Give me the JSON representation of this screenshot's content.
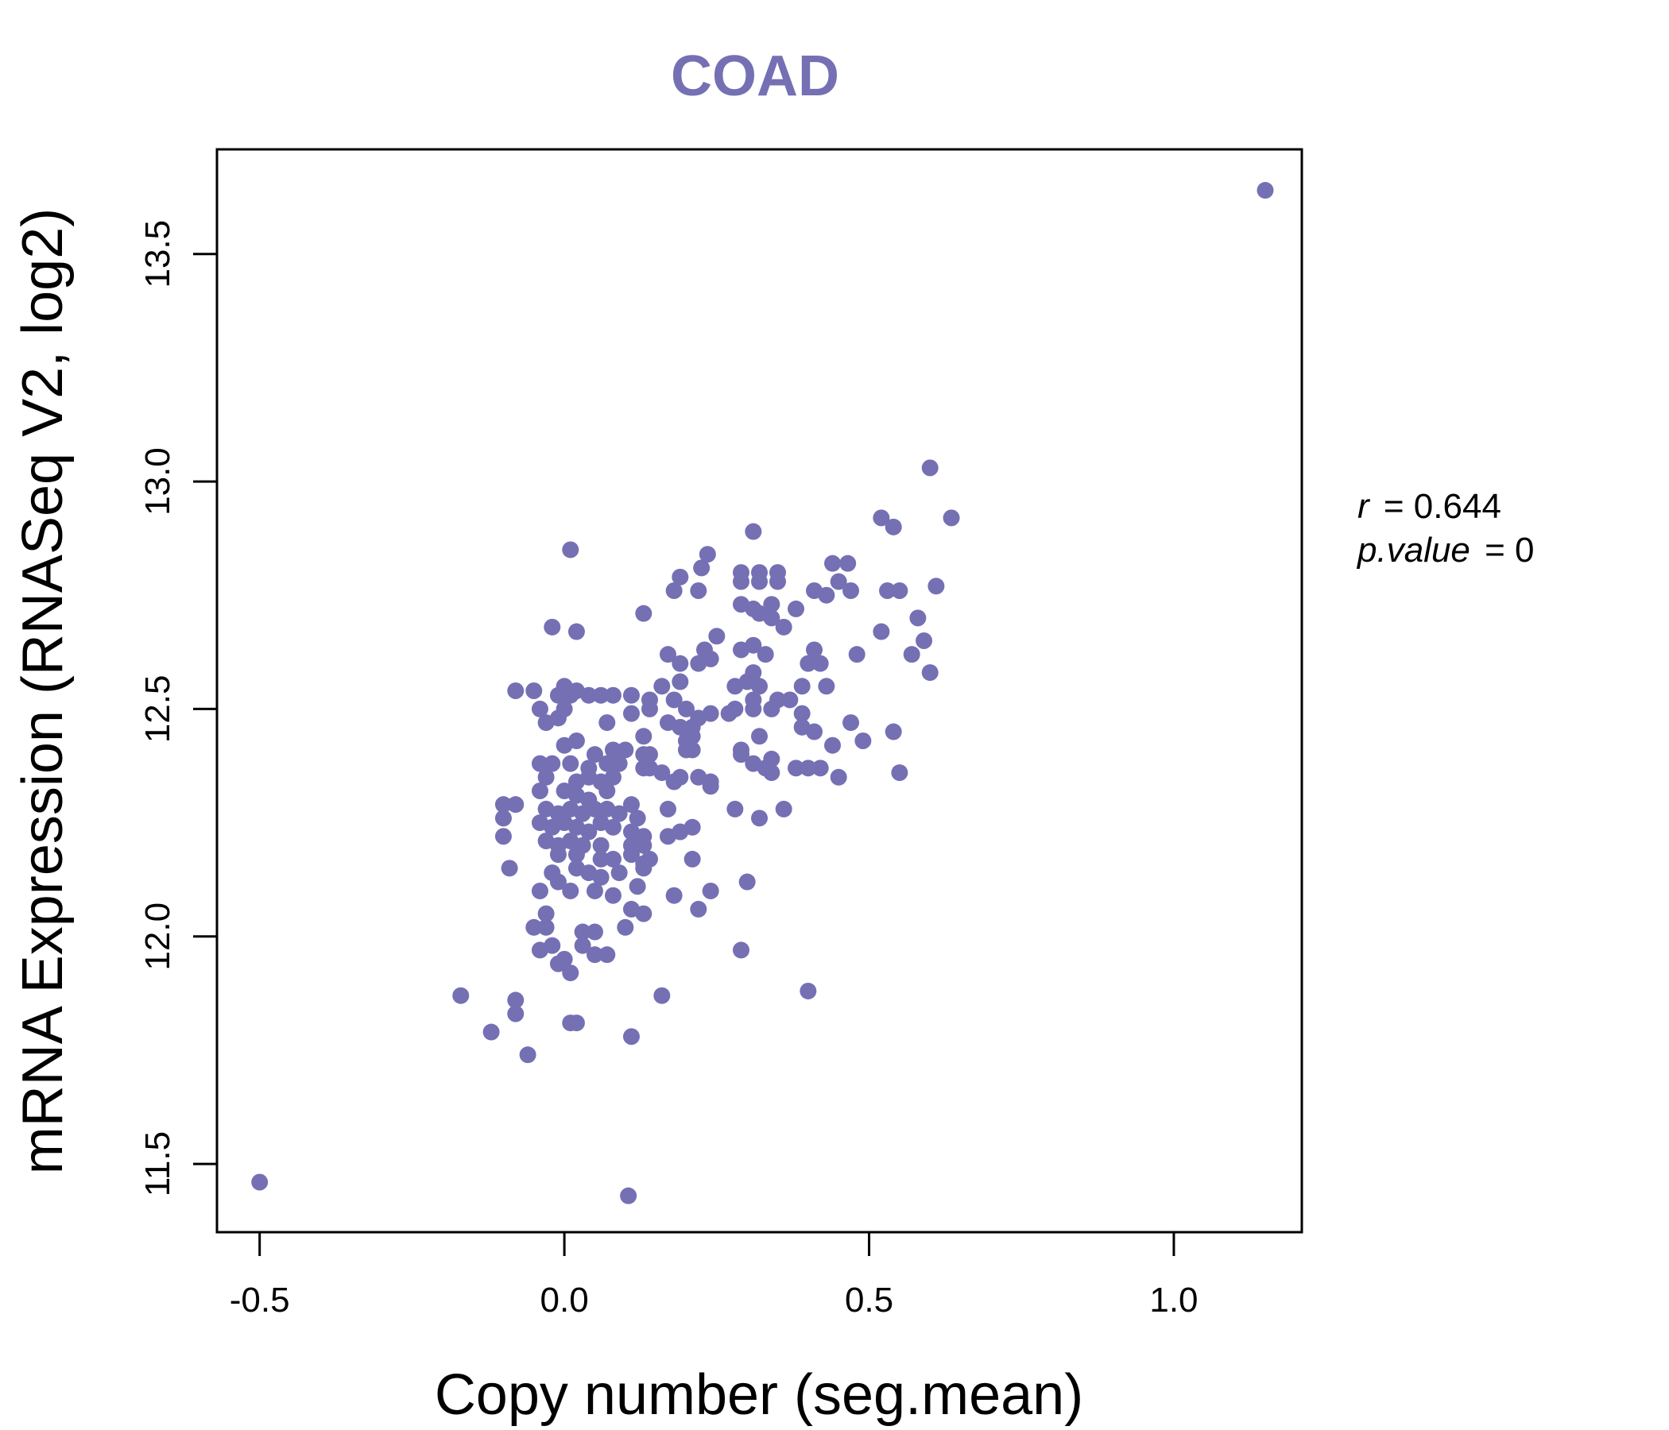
{
  "chart_data": {
    "type": "scatter",
    "title": "COAD",
    "xlabel": "Copy number (seg.mean)",
    "ylabel": "mRNA Expression (RNASeq V2, log2)",
    "xlim": [
      -0.57,
      1.21
    ],
    "ylim": [
      11.35,
      13.73
    ],
    "xticks": [
      -0.5,
      0.0,
      0.5,
      1.0
    ],
    "xtick_labels": [
      "-0.5",
      "0.0",
      "0.5",
      "1.0"
    ],
    "yticks": [
      11.5,
      12.0,
      12.5,
      13.0,
      13.5
    ],
    "ytick_labels": [
      "11.5",
      "12.0",
      "12.5",
      "13.0",
      "13.5"
    ],
    "point_color": "#7570b3",
    "annotation": {
      "r_label": "r",
      "r_value": "= 0.644",
      "p_label": "p.value",
      "p_value": "= 0"
    },
    "points": [
      [
        1.15,
        13.64
      ],
      [
        -0.5,
        11.46
      ],
      [
        0.105,
        11.43
      ],
      [
        0.6,
        13.03
      ],
      [
        0.635,
        12.92
      ],
      [
        0.52,
        12.92
      ],
      [
        0.54,
        12.9
      ],
      [
        0.31,
        12.89
      ],
      [
        0.01,
        12.85
      ],
      [
        0.235,
        12.84
      ],
      [
        0.29,
        12.8
      ],
      [
        0.32,
        12.8
      ],
      [
        0.35,
        12.8
      ],
      [
        0.44,
        12.82
      ],
      [
        0.465,
        12.82
      ],
      [
        0.19,
        12.79
      ],
      [
        0.225,
        12.81
      ],
      [
        0.29,
        12.78
      ],
      [
        0.32,
        12.78
      ],
      [
        0.35,
        12.78
      ],
      [
        0.18,
        12.76
      ],
      [
        0.22,
        12.76
      ],
      [
        0.41,
        12.76
      ],
      [
        0.43,
        12.75
      ],
      [
        0.47,
        12.76
      ],
      [
        0.53,
        12.76
      ],
      [
        0.55,
        12.76
      ],
      [
        0.61,
        12.77
      ],
      [
        0.45,
        12.78
      ],
      [
        0.29,
        12.73
      ],
      [
        0.31,
        12.72
      ],
      [
        0.34,
        12.73
      ],
      [
        0.38,
        12.72
      ],
      [
        0.32,
        12.71
      ],
      [
        0.34,
        12.7
      ],
      [
        0.36,
        12.68
      ],
      [
        0.13,
        12.71
      ],
      [
        0.58,
        12.7
      ],
      [
        -0.02,
        12.68
      ],
      [
        0.02,
        12.67
      ],
      [
        0.25,
        12.66
      ],
      [
        0.52,
        12.67
      ],
      [
        0.59,
        12.65
      ],
      [
        0.31,
        12.64
      ],
      [
        0.33,
        12.62
      ],
      [
        0.29,
        12.63
      ],
      [
        0.23,
        12.63
      ],
      [
        0.17,
        12.62
      ],
      [
        0.19,
        12.6
      ],
      [
        0.22,
        12.6
      ],
      [
        0.24,
        12.61
      ],
      [
        0.41,
        12.63
      ],
      [
        0.42,
        12.6
      ],
      [
        0.4,
        12.6
      ],
      [
        0.48,
        12.62
      ],
      [
        0.57,
        12.62
      ],
      [
        0.6,
        12.58
      ],
      [
        0.31,
        12.58
      ],
      [
        0.3,
        12.56
      ],
      [
        0.32,
        12.55
      ],
      [
        0.28,
        12.55
      ],
      [
        0.19,
        12.56
      ],
      [
        0.16,
        12.55
      ],
      [
        0.39,
        12.55
      ],
      [
        0.43,
        12.55
      ],
      [
        -0.08,
        12.54
      ],
      [
        -0.05,
        12.54
      ],
      [
        -0.01,
        12.53
      ],
      [
        0.0,
        12.55
      ],
      [
        0.01,
        12.53
      ],
      [
        0.02,
        12.54
      ],
      [
        0.04,
        12.53
      ],
      [
        0.06,
        12.53
      ],
      [
        0.08,
        12.53
      ],
      [
        0.11,
        12.53
      ],
      [
        0.14,
        12.52
      ],
      [
        0.18,
        12.52
      ],
      [
        0.31,
        12.52
      ],
      [
        0.35,
        12.52
      ],
      [
        0.37,
        12.52
      ],
      [
        -0.04,
        12.5
      ],
      [
        0.0,
        12.5
      ],
      [
        0.11,
        12.49
      ],
      [
        0.14,
        12.5
      ],
      [
        0.2,
        12.5
      ],
      [
        0.22,
        12.48
      ],
      [
        0.24,
        12.49
      ],
      [
        0.27,
        12.49
      ],
      [
        0.28,
        12.5
      ],
      [
        0.31,
        12.5
      ],
      [
        0.34,
        12.5
      ],
      [
        0.39,
        12.49
      ],
      [
        -0.03,
        12.47
      ],
      [
        -0.01,
        12.48
      ],
      [
        0.07,
        12.47
      ],
      [
        0.17,
        12.47
      ],
      [
        0.19,
        12.46
      ],
      [
        0.21,
        12.46
      ],
      [
        0.39,
        12.46
      ],
      [
        0.41,
        12.45
      ],
      [
        0.47,
        12.47
      ],
      [
        0.54,
        12.45
      ],
      [
        0.49,
        12.43
      ],
      [
        0.44,
        12.42
      ],
      [
        0.13,
        12.44
      ],
      [
        0.2,
        12.43
      ],
      [
        0.21,
        12.44
      ],
      [
        0.32,
        12.44
      ],
      [
        0.0,
        12.42
      ],
      [
        0.02,
        12.43
      ],
      [
        0.05,
        12.4
      ],
      [
        0.08,
        12.41
      ],
      [
        0.1,
        12.41
      ],
      [
        0.13,
        12.4
      ],
      [
        0.14,
        12.4
      ],
      [
        0.2,
        12.41
      ],
      [
        0.21,
        12.41
      ],
      [
        0.29,
        12.41
      ],
      [
        0.29,
        12.4
      ],
      [
        -0.04,
        12.38
      ],
      [
        -0.02,
        12.38
      ],
      [
        0.01,
        12.38
      ],
      [
        0.04,
        12.37
      ],
      [
        0.07,
        12.38
      ],
      [
        0.09,
        12.38
      ],
      [
        0.13,
        12.37
      ],
      [
        0.14,
        12.37
      ],
      [
        0.16,
        12.36
      ],
      [
        0.31,
        12.38
      ],
      [
        0.33,
        12.37
      ],
      [
        0.34,
        12.36
      ],
      [
        0.34,
        12.39
      ],
      [
        0.38,
        12.37
      ],
      [
        0.4,
        12.37
      ],
      [
        0.42,
        12.37
      ],
      [
        0.45,
        12.35
      ],
      [
        0.55,
        12.36
      ],
      [
        -0.03,
        12.35
      ],
      [
        0.02,
        12.34
      ],
      [
        0.04,
        12.35
      ],
      [
        0.06,
        12.34
      ],
      [
        0.08,
        12.35
      ],
      [
        0.18,
        12.34
      ],
      [
        0.19,
        12.35
      ],
      [
        0.22,
        12.35
      ],
      [
        0.24,
        12.34
      ],
      [
        0.24,
        12.33
      ],
      [
        -0.04,
        12.32
      ],
      [
        0.0,
        12.32
      ],
      [
        0.02,
        12.31
      ],
      [
        0.04,
        12.3
      ],
      [
        0.07,
        12.32
      ],
      [
        -0.1,
        12.29
      ],
      [
        -0.08,
        12.29
      ],
      [
        -0.03,
        12.28
      ],
      [
        -0.01,
        12.27
      ],
      [
        0.01,
        12.28
      ],
      [
        0.03,
        12.27
      ],
      [
        0.05,
        12.28
      ],
      [
        0.07,
        12.28
      ],
      [
        0.09,
        12.27
      ],
      [
        0.11,
        12.29
      ],
      [
        0.12,
        12.26
      ],
      [
        0.17,
        12.28
      ],
      [
        0.28,
        12.28
      ],
      [
        0.32,
        12.26
      ],
      [
        0.36,
        12.28
      ],
      [
        -0.1,
        12.26
      ],
      [
        -0.04,
        12.25
      ],
      [
        -0.02,
        12.24
      ],
      [
        0.0,
        12.25
      ],
      [
        0.02,
        12.24
      ],
      [
        0.04,
        12.23
      ],
      [
        0.06,
        12.25
      ],
      [
        0.08,
        12.24
      ],
      [
        0.11,
        12.23
      ],
      [
        0.13,
        12.22
      ],
      [
        0.17,
        12.22
      ],
      [
        0.19,
        12.23
      ],
      [
        0.21,
        12.24
      ],
      [
        -0.1,
        12.22
      ],
      [
        -0.03,
        12.21
      ],
      [
        -0.01,
        12.2
      ],
      [
        0.01,
        12.21
      ],
      [
        0.03,
        12.2
      ],
      [
        0.06,
        12.2
      ],
      [
        0.11,
        12.2
      ],
      [
        0.13,
        12.2
      ],
      [
        -0.01,
        12.18
      ],
      [
        0.02,
        12.18
      ],
      [
        0.06,
        12.17
      ],
      [
        0.08,
        12.17
      ],
      [
        0.11,
        12.18
      ],
      [
        0.13,
        12.16
      ],
      [
        0.14,
        12.17
      ],
      [
        0.21,
        12.17
      ],
      [
        -0.09,
        12.15
      ],
      [
        -0.02,
        12.14
      ],
      [
        0.02,
        12.15
      ],
      [
        0.04,
        12.14
      ],
      [
        0.06,
        12.13
      ],
      [
        0.09,
        12.14
      ],
      [
        0.13,
        12.15
      ],
      [
        -0.04,
        12.1
      ],
      [
        -0.01,
        12.12
      ],
      [
        0.01,
        12.1
      ],
      [
        0.05,
        12.1
      ],
      [
        0.08,
        12.09
      ],
      [
        0.12,
        12.11
      ],
      [
        0.18,
        12.09
      ],
      [
        0.24,
        12.1
      ],
      [
        0.3,
        12.12
      ],
      [
        -0.03,
        12.05
      ],
      [
        0.11,
        12.06
      ],
      [
        0.13,
        12.05
      ],
      [
        0.22,
        12.06
      ],
      [
        -0.05,
        12.02
      ],
      [
        -0.03,
        12.02
      ],
      [
        0.03,
        12.01
      ],
      [
        0.05,
        12.01
      ],
      [
        0.1,
        12.02
      ],
      [
        -0.04,
        11.97
      ],
      [
        -0.02,
        11.98
      ],
      [
        0.0,
        11.95
      ],
      [
        0.03,
        11.98
      ],
      [
        0.05,
        11.96
      ],
      [
        0.07,
        11.96
      ],
      [
        0.29,
        11.97
      ],
      [
        0.01,
        11.92
      ],
      [
        -0.01,
        11.94
      ],
      [
        -0.17,
        11.87
      ],
      [
        -0.08,
        11.86
      ],
      [
        0.16,
        11.87
      ],
      [
        0.4,
        11.88
      ],
      [
        -0.08,
        11.83
      ],
      [
        0.01,
        11.81
      ],
      [
        0.02,
        11.81
      ],
      [
        -0.12,
        11.79
      ],
      [
        0.11,
        11.78
      ],
      [
        -0.06,
        11.74
      ]
    ]
  }
}
